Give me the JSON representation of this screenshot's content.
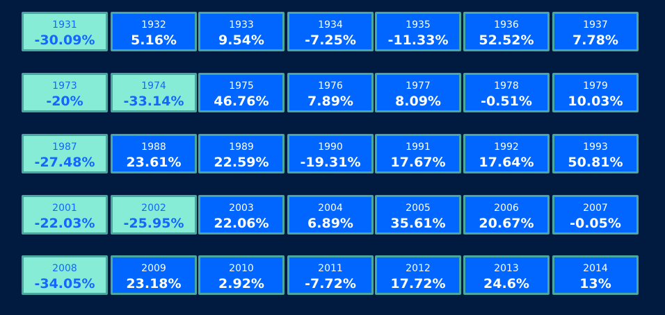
{
  "rows": [
    [
      {
        "year": "1931",
        "return": "-30.09%",
        "down": true
      },
      {
        "year": "1932",
        "return": "5.16%",
        "down": false
      },
      {
        "year": "1933",
        "return": "9.54%",
        "down": false
      },
      {
        "year": "1934",
        "return": "-7.25%",
        "down": false
      },
      {
        "year": "1935",
        "return": "-11.33%",
        "down": false
      },
      {
        "year": "1936",
        "return": "52.52%",
        "down": false
      },
      {
        "year": "1937",
        "return": "7.78%",
        "down": false
      }
    ],
    [
      {
        "year": "1973",
        "return": "-20%",
        "down": true
      },
      {
        "year": "1974",
        "return": "-33.14%",
        "down": true
      },
      {
        "year": "1975",
        "return": "46.76%",
        "down": false
      },
      {
        "year": "1976",
        "return": "7.89%",
        "down": false
      },
      {
        "year": "1977",
        "return": "8.09%",
        "down": false
      },
      {
        "year": "1978",
        "return": "-0.51%",
        "down": false
      },
      {
        "year": "1979",
        "return": "10.03%",
        "down": false
      }
    ],
    [
      {
        "year": "1987",
        "return": "-27.48%",
        "down": true
      },
      {
        "year": "1988",
        "return": "23.61%",
        "down": false
      },
      {
        "year": "1989",
        "return": "22.59%",
        "down": false
      },
      {
        "year": "1990",
        "return": "-19.31%",
        "down": false
      },
      {
        "year": "1991",
        "return": "17.67%",
        "down": false
      },
      {
        "year": "1992",
        "return": "17.64%",
        "down": false
      },
      {
        "year": "1993",
        "return": "50.81%",
        "down": false
      }
    ],
    [
      {
        "year": "2001",
        "return": "-22.03%",
        "down": true
      },
      {
        "year": "2002",
        "return": "-25.95%",
        "down": true
      },
      {
        "year": "2003",
        "return": "22.06%",
        "down": false
      },
      {
        "year": "2004",
        "return": "6.89%",
        "down": false
      },
      {
        "year": "2005",
        "return": "35.61%",
        "down": false
      },
      {
        "year": "2006",
        "return": "20.67%",
        "down": false
      },
      {
        "year": "2007",
        "return": "-0.05%",
        "down": false
      }
    ],
    [
      {
        "year": "2008",
        "return": "-34.05%",
        "down": true
      },
      {
        "year": "2009",
        "return": "23.18%",
        "down": false
      },
      {
        "year": "2010",
        "return": "2.92%",
        "down": false
      },
      {
        "year": "2011",
        "return": "-7.72%",
        "down": false
      },
      {
        "year": "2012",
        "return": "17.72%",
        "down": false
      },
      {
        "year": "2013",
        "return": "24.6%",
        "down": false
      },
      {
        "year": "2014",
        "return": "13%",
        "down": false
      }
    ]
  ],
  "colors": {
    "background": "#001a40",
    "up_cell": "#0066ff",
    "down_cell": "#86ecd6",
    "border": "#4aa8a0"
  }
}
